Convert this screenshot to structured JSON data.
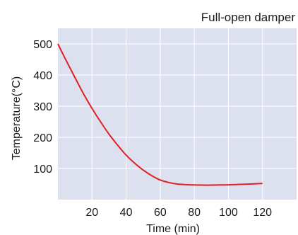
{
  "chart_data": {
    "type": "line",
    "title": "Full-open damper",
    "xlabel": "Time (min)",
    "ylabel": "Temperature(°C)",
    "xlim": [
      0,
      140
    ],
    "ylim": [
      0,
      550
    ],
    "xticks": [
      20,
      40,
      60,
      80,
      100,
      120
    ],
    "yticks": [
      100,
      200,
      300,
      400,
      500
    ],
    "grid": true,
    "legend": "none",
    "colors": {
      "plot_background": "#dde0ef",
      "grid": "#ffffff",
      "line": "#e02020"
    },
    "series": [
      {
        "x": [
          0,
          5,
          10,
          15,
          20,
          25,
          30,
          35,
          40,
          45,
          50,
          55,
          60,
          65,
          70,
          75,
          80,
          85,
          90,
          95,
          100,
          105,
          110,
          115,
          120
        ],
        "y": [
          500,
          445,
          392,
          340,
          293,
          250,
          210,
          175,
          143,
          117,
          95,
          77,
          63,
          55,
          50,
          48,
          47,
          46.5,
          46.5,
          47,
          47.5,
          48.5,
          49.5,
          50.5,
          52
        ]
      }
    ]
  }
}
